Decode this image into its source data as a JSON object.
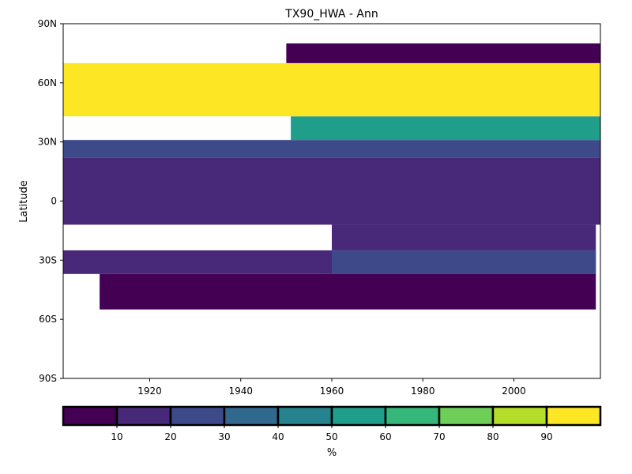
{
  "chart_data": {
    "type": "heatmap",
    "title": "TX90_HWA - Ann",
    "xlabel": "",
    "ylabel": "Latitude",
    "xlim": [
      1901,
      2019
    ],
    "ylim": [
      -90,
      90
    ],
    "x_ticks": [
      1920,
      1940,
      1960,
      1980,
      2000
    ],
    "x_tick_labels": [
      "1920",
      "1940",
      "1960",
      "1980",
      "2000"
    ],
    "y_ticks": [
      90,
      60,
      30,
      0,
      -30,
      -60,
      -90
    ],
    "y_tick_labels": [
      "90N",
      "60N",
      "30N",
      "0",
      "30S",
      "60S",
      "90S"
    ],
    "colorbar": {
      "label": "%",
      "bounds": [
        0,
        10,
        20,
        30,
        40,
        50,
        60,
        70,
        80,
        90,
        100
      ],
      "tick_values": [
        10,
        20,
        30,
        40,
        50,
        60,
        70,
        80,
        90
      ],
      "tick_labels": [
        "10",
        "20",
        "30",
        "40",
        "50",
        "60",
        "70",
        "80",
        "90"
      ],
      "colors": [
        "#440154",
        "#482878",
        "#3e4989",
        "#31688e",
        "#26828e",
        "#1f9e89",
        "#35b779",
        "#6ece58",
        "#b5de2b",
        "#fde725"
      ]
    },
    "regions": [
      {
        "x": [
          1909,
          2018
        ],
        "y": [
          -55,
          -37
        ],
        "value": 5
      },
      {
        "x": [
          1901,
          2018
        ],
        "y": [
          -37,
          -25
        ],
        "value": 15
      },
      {
        "x": [
          1960,
          2018
        ],
        "y": [
          -37,
          -25
        ],
        "value": 25
      },
      {
        "x": [
          1960,
          2018
        ],
        "y": [
          -25,
          -12
        ],
        "value": 15
      },
      {
        "x": [
          1901,
          2019
        ],
        "y": [
          -12,
          22
        ],
        "value": 15
      },
      {
        "x": [
          1901,
          2019
        ],
        "y": [
          22,
          31
        ],
        "value": 25
      },
      {
        "x": [
          1951,
          2019
        ],
        "y": [
          31,
          43
        ],
        "value": 55
      },
      {
        "x": [
          1901,
          2019
        ],
        "y": [
          43,
          70
        ],
        "value": 95
      },
      {
        "x": [
          1950,
          2019
        ],
        "y": [
          70,
          80
        ],
        "value": 5
      }
    ]
  }
}
